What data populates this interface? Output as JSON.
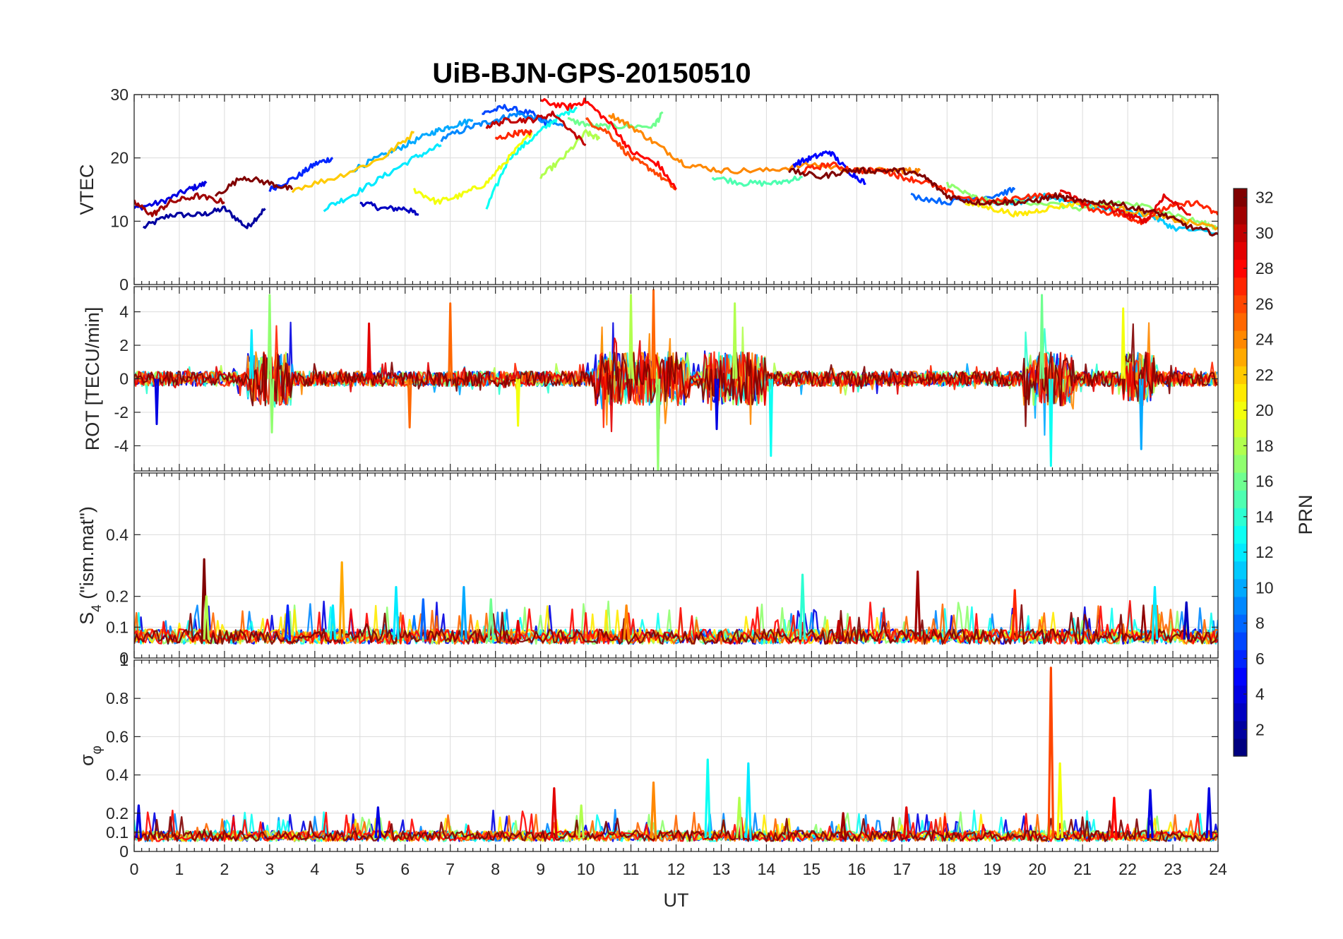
{
  "chart_data": {
    "type": "line",
    "title": "UiB-BJN-GPS-20150510",
    "xlabel": "UT",
    "xlim": [
      0,
      24
    ],
    "x_ticks": [
      "0",
      "1",
      "2",
      "3",
      "4",
      "5",
      "6",
      "7",
      "8",
      "9",
      "10",
      "11",
      "12",
      "13",
      "14",
      "15",
      "16",
      "17",
      "18",
      "19",
      "20",
      "21",
      "22",
      "23",
      "24"
    ],
    "grid": true,
    "series_note": "one line per GPS satellite, colored by PRN",
    "colorbar": {
      "label": "PRN",
      "range": [
        1,
        32
      ],
      "ticks": [
        "2",
        "4",
        "6",
        "8",
        "10",
        "12",
        "14",
        "16",
        "18",
        "20",
        "22",
        "24",
        "26",
        "28",
        "30",
        "32"
      ],
      "colormap": "jet"
    },
    "panels": [
      {
        "ylabel": "VTEC",
        "ylim": [
          0,
          30
        ],
        "y_ticks": [
          "0",
          "10",
          "20",
          "30"
        ],
        "series": [
          {
            "prn": 2,
            "x": [
              0.2,
              0.8,
              1.5,
              2.0,
              2.5,
              2.9
            ],
            "y": [
              9,
              11,
              11,
              12,
              9,
              12
            ]
          },
          {
            "prn": 4,
            "x": [
              0,
              0.6,
              1.2,
              1.6
            ],
            "y": [
              12,
              13,
              15,
              16
            ]
          },
          {
            "prn": 3,
            "x": [
              5.0,
              5.5,
              6.0,
              6.3
            ],
            "y": [
              13,
              12,
              12,
              11
            ]
          },
          {
            "prn": 6,
            "x": [
              3.0,
              3.6,
              4.0,
              4.4
            ],
            "y": [
              15,
              17,
              19,
              20
            ]
          },
          {
            "prn": 7,
            "x": [
              7.7,
              8.2,
              8.8,
              9.2
            ],
            "y": [
              27,
              28,
              27,
              25
            ]
          },
          {
            "prn": 9,
            "x": [
              6.8,
              7.5,
              8.0,
              8.5,
              9.0,
              9.5
            ],
            "y": [
              23,
              25,
              26,
              27,
              26,
              25
            ]
          },
          {
            "prn": 10,
            "x": [
              4.8,
              5.4,
              6.0,
              6.6,
              7.0,
              7.5
            ],
            "y": [
              18,
              20,
              22,
              24,
              25,
              26
            ]
          },
          {
            "prn": 12,
            "x": [
              4.2,
              4.8,
              5.5,
              6.2,
              6.8
            ],
            "y": [
              12,
              14,
              17,
              20,
              22
            ]
          },
          {
            "prn": 13,
            "x": [
              7.8,
              8.3,
              8.8,
              9.3,
              9.8
            ],
            "y": [
              12,
              20,
              23,
              26,
              28
            ]
          },
          {
            "prn": 15,
            "x": [
              12.8,
              13.5,
              14.2,
              14.8
            ],
            "y": [
              17,
              16,
              16,
              17
            ]
          },
          {
            "prn": 16,
            "x": [
              9.6,
              10.2,
              10.8,
              11.5,
              11.7
            ],
            "y": [
              26,
              25,
              25,
              25,
              27
            ]
          },
          {
            "prn": 18,
            "x": [
              9.0,
              9.5,
              10.0,
              10.3
            ],
            "y": [
              17,
              20,
              24,
              23
            ]
          },
          {
            "prn": 20,
            "x": [
              6.2,
              6.7,
              7.2,
              7.8,
              8.3,
              8.8
            ],
            "y": [
              15,
              13,
              14,
              16,
              20,
              24
            ]
          },
          {
            "prn": 22,
            "x": [
              3.5,
              4.5,
              5.5,
              6.2
            ],
            "y": [
              15,
              17,
              20,
              24
            ]
          },
          {
            "prn": 24,
            "x": [
              10.5,
              11.0,
              11.6,
              12.2,
              13.0,
              14.0,
              15.0,
              16.0,
              17.0,
              17.4
            ],
            "y": [
              27,
              25,
              22,
              19,
              18,
              18,
              19,
              18,
              18,
              18
            ]
          },
          {
            "prn": 26,
            "x": [
              10.0,
              10.5,
              11.0,
              11.5,
              12.0
            ],
            "y": [
              26,
              24,
              20,
              18,
              15
            ]
          },
          {
            "prn": 28,
            "x": [
              9.0,
              9.6,
              10.0,
              10.6,
              11.0,
              11.6,
              12.0
            ],
            "y": [
              29,
              28,
              29,
              25,
              21,
              19,
              15
            ]
          },
          {
            "prn": 27,
            "x": [
              8.0,
              8.5,
              8.8
            ],
            "y": [
              23,
              24,
              24
            ]
          },
          {
            "prn": 32,
            "x": [
              1.8,
              2.4,
              3.0,
              3.5
            ],
            "y": [
              14,
              17,
              16,
              15
            ]
          },
          {
            "prn": 31,
            "x": [
              0,
              0.4,
              0.8,
              1.4,
              2.0
            ],
            "y": [
              13,
              11,
              13,
              14,
              13
            ]
          },
          {
            "prn": 30,
            "x": [
              7.8,
              8.3,
              8.8,
              9.3,
              10.0
            ],
            "y": [
              25,
              26,
              26,
              27,
              22
            ]
          },
          {
            "prn": 5,
            "x": [
              14.6,
              15.0,
              15.4,
              15.8,
              16.2
            ],
            "y": [
              19,
              20,
              21,
              18,
              16
            ]
          },
          {
            "prn": 8,
            "x": [
              17.2,
              18.0,
              19.0,
              19.5
            ],
            "y": [
              14,
              13,
              14,
              15
            ]
          },
          {
            "prn": 11,
            "x": [
              19.0,
              19.6,
              20.2,
              20.8,
              21.5,
              22.5,
              23.0,
              24.0
            ],
            "y": [
              13,
              13,
              14,
              13,
              12,
              11,
              9,
              8
            ]
          },
          {
            "prn": 17,
            "x": [
              18.0,
              18.5,
              19.0,
              20.0,
              21.0,
              21.8,
              22.6,
              23.5,
              24.0
            ],
            "y": [
              16,
              14,
              13,
              13,
              12,
              13,
              12,
              10,
              9
            ]
          },
          {
            "prn": 21,
            "x": [
              18.4,
              19.0,
              19.6,
              20.2,
              21.0
            ],
            "y": [
              13,
              12,
              11,
              12,
              13
            ]
          },
          {
            "prn": 23,
            "x": [
              21.0,
              21.8,
              22.5,
              23.2,
              24.0
            ],
            "y": [
              13,
              12,
              11,
              10,
              9
            ]
          },
          {
            "prn": 27,
            "x": [
              14.8,
              15.4,
              16.0,
              16.6,
              17.0,
              17.6,
              18.2,
              19.0,
              19.8,
              20.5,
              21.2,
              21.8,
              22.3,
              22.8,
              23.5,
              24.0
            ],
            "y": [
              18,
              19,
              18,
              18,
              17,
              16,
              14,
              13,
              14,
              14,
              12,
              11,
              10,
              12,
              13,
              11
            ]
          },
          {
            "prn": 29,
            "x": [
              20.5,
              21.0,
              21.6,
              22.0,
              22.4,
              22.8,
              23.4
            ],
            "y": [
              15,
              13,
              12,
              11,
              10,
              14,
              11
            ]
          },
          {
            "prn": 32,
            "x": [
              14.5,
              15.2,
              15.8,
              16.4,
              17.0,
              17.5,
              18.0,
              18.6,
              19.2,
              19.8,
              20.4,
              21.0,
              21.6,
              22.2,
              22.8,
              23.4,
              24.0
            ],
            "y": [
              18,
              17,
              18,
              18,
              18,
              17,
              14,
              13,
              13,
              13,
              14,
              13,
              13,
              12,
              11,
              9,
              8
            ]
          }
        ]
      },
      {
        "ylabel": "ROT [TECU/min]",
        "ylim": [
          -5.5,
          5.5
        ],
        "y_ticks": [
          "-4",
          "-2",
          "0",
          "2",
          "4"
        ],
        "activity_bands": [
          [
            2.5,
            3.5
          ],
          [
            10.2,
            12.3
          ],
          [
            12.6,
            14.0
          ],
          [
            19.7,
            20.8
          ],
          [
            21.9,
            22.6
          ]
        ],
        "spikes": [
          {
            "x": 0.5,
            "y": -2.7,
            "prn": 4
          },
          {
            "x": 2.6,
            "y": 2.9,
            "prn": 12
          },
          {
            "x": 3.0,
            "y": 5.0,
            "prn": 17
          },
          {
            "x": 3.05,
            "y": -3.2,
            "prn": 17
          },
          {
            "x": 5.2,
            "y": 3.3,
            "prn": 29
          },
          {
            "x": 7.0,
            "y": 4.5,
            "prn": 25
          },
          {
            "x": 6.1,
            "y": -2.9,
            "prn": 25
          },
          {
            "x": 8.5,
            "y": -2.8,
            "prn": 20
          },
          {
            "x": 11.0,
            "y": 5.0,
            "prn": 18
          },
          {
            "x": 11.5,
            "y": 5.3,
            "prn": 25
          },
          {
            "x": 11.6,
            "y": -5.5,
            "prn": 17
          },
          {
            "x": 12.9,
            "y": -3.0,
            "prn": 4
          },
          {
            "x": 13.3,
            "y": 4.5,
            "prn": 18
          },
          {
            "x": 14.1,
            "y": -4.6,
            "prn": 13
          },
          {
            "x": 20.1,
            "y": 5.0,
            "prn": 16
          },
          {
            "x": 20.3,
            "y": -5.2,
            "prn": 13
          },
          {
            "x": 21.9,
            "y": 4.2,
            "prn": 20
          },
          {
            "x": 22.3,
            "y": -4.2,
            "prn": 10
          }
        ]
      },
      {
        "ylabel": "S",
        "ylabel_sub": "4",
        "ylabel_suffix": " (\"ism.mat\")",
        "ylim": [
          0,
          0.6
        ],
        "y_ticks": [
          "0",
          "0.1",
          "0.2",
          "0.4"
        ],
        "baseline": 0.06,
        "spikes": [
          {
            "x": 1.55,
            "y": 0.32,
            "prn": 32
          },
          {
            "x": 1.6,
            "y": 0.2,
            "prn": 18
          },
          {
            "x": 3.4,
            "y": 0.17,
            "prn": 6
          },
          {
            "x": 4.4,
            "y": 0.17,
            "prn": 12
          },
          {
            "x": 4.6,
            "y": 0.31,
            "prn": 23
          },
          {
            "x": 5.8,
            "y": 0.23,
            "prn": 12
          },
          {
            "x": 6.4,
            "y": 0.19,
            "prn": 8
          },
          {
            "x": 7.3,
            "y": 0.23,
            "prn": 10
          },
          {
            "x": 7.9,
            "y": 0.19,
            "prn": 16
          },
          {
            "x": 8.5,
            "y": 0.12,
            "prn": 29
          },
          {
            "x": 10.9,
            "y": 0.17,
            "prn": 24
          },
          {
            "x": 14.8,
            "y": 0.27,
            "prn": 14
          },
          {
            "x": 15.6,
            "y": 0.12,
            "prn": 30
          },
          {
            "x": 17.35,
            "y": 0.28,
            "prn": 31
          },
          {
            "x": 19.5,
            "y": 0.22,
            "prn": 27
          },
          {
            "x": 22.6,
            "y": 0.23,
            "prn": 12
          },
          {
            "x": 23.3,
            "y": 0.18,
            "prn": 3
          }
        ]
      },
      {
        "ylabel": "σ",
        "ylabel_sub": "φ",
        "ylim": [
          0,
          1
        ],
        "y_ticks": [
          "0",
          "0.1",
          "0.2",
          "0.4",
          "0.6",
          "0.8"
        ],
        "top_tick": "1",
        "baseline": 0.07,
        "spikes": [
          {
            "x": 0.1,
            "y": 0.24,
            "prn": 4
          },
          {
            "x": 5.4,
            "y": 0.23,
            "prn": 4
          },
          {
            "x": 9.3,
            "y": 0.33,
            "prn": 29
          },
          {
            "x": 9.9,
            "y": 0.24,
            "prn": 18
          },
          {
            "x": 11.5,
            "y": 0.36,
            "prn": 24
          },
          {
            "x": 12.7,
            "y": 0.48,
            "prn": 13
          },
          {
            "x": 13.6,
            "y": 0.46,
            "prn": 12
          },
          {
            "x": 13.4,
            "y": 0.28,
            "prn": 18
          },
          {
            "x": 15.7,
            "y": 0.2,
            "prn": 31
          },
          {
            "x": 17.1,
            "y": 0.23,
            "prn": 29
          },
          {
            "x": 20.3,
            "y": 0.96,
            "prn": 26
          },
          {
            "x": 20.5,
            "y": 0.46,
            "prn": 20
          },
          {
            "x": 21.7,
            "y": 0.28,
            "prn": 28
          },
          {
            "x": 22.5,
            "y": 0.32,
            "prn": 4
          },
          {
            "x": 23.8,
            "y": 0.33,
            "prn": 4
          }
        ]
      }
    ]
  }
}
